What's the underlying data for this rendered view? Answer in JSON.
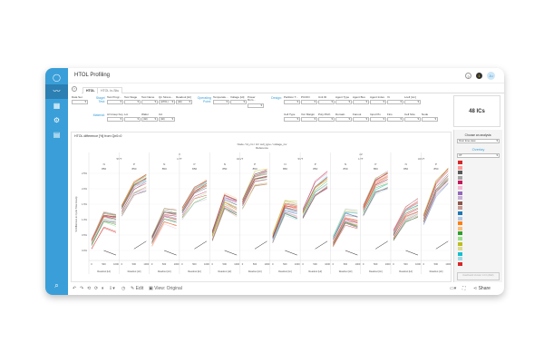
{
  "app": {
    "title": "HTOL Profiling",
    "user_initials": "Ju",
    "notification_count": "1"
  },
  "sidebar": {
    "items": [
      {
        "icon": "logo-icon"
      },
      {
        "icon": "trend-icon",
        "active": true
      },
      {
        "icon": "grid-icon"
      },
      {
        "icon": "gear-icon"
      },
      {
        "icon": "database-icon"
      },
      {
        "icon": "search-icon"
      }
    ]
  },
  "tabs": [
    {
      "label": "HTOL",
      "active": true
    },
    {
      "label": "HTOL In-Situ"
    }
  ],
  "filters": {
    "data_set": {
      "label": "Data Set",
      "value": ""
    },
    "stage_label": "Stage/ Test:",
    "stage": [
      {
        "label": "Test Progr...",
        "value": ""
      },
      {
        "label": "Test Stage",
        "value": ""
      },
      {
        "label": "Test Name",
        "value": ""
      },
      {
        "label": "Qn Stress...",
        "value": "(HTOL)"
      },
      {
        "label": "Readout [Hr]",
        "value": "(All)"
      }
    ],
    "operating_label": "Operating Point:",
    "operating": [
      {
        "label": "Temperatu...",
        "value": ""
      },
      {
        "label": "Voltage [Hi]",
        "value": ""
      },
      {
        "label": "Power Dom...",
        "value": ""
      }
    ],
    "material_label": "Material:",
    "material": [
      {
        "label": "Al Group Key",
        "value": ""
      },
      {
        "label": "Lot",
        "value": ""
      },
      {
        "label": "Wafer",
        "value": "(All)"
      },
      {
        "label": "Ud",
        "value": "(All)"
      }
    ],
    "design_label": "Design:",
    "design1": [
      {
        "label": "Partition T...",
        "value": ""
      },
      {
        "label": "PCOIO",
        "value": ""
      },
      {
        "label": "Unit ID",
        "value": ""
      },
      {
        "label": "Agent Type",
        "value": ""
      },
      {
        "label": "Agent Bus",
        "value": ""
      },
      {
        "label": "Agent Index",
        "value": ""
      },
      {
        "label": "Vt",
        "value": ""
      },
      {
        "label": "Lcell [nm]",
        "value": ""
      }
    ],
    "design2": [
      {
        "label": "Cell Type",
        "value": ""
      },
      {
        "label": "Vcc Margin",
        "value": ""
      },
      {
        "label": "Poly Pitch",
        "value": ""
      },
      {
        "label": "Domain",
        "value": ""
      },
      {
        "label": "Fanout",
        "value": ""
      },
      {
        "label": "Input Pin",
        "value": ""
      },
      {
        "label": "Fins",
        "value": ""
      },
      {
        "label": "Cell Size",
        "value": ""
      },
      {
        "label": "Node",
        "value": ""
      }
    ]
  },
  "kpi": {
    "value": "48 ICs"
  },
  "analysis": {
    "label": "Choose an analysis:",
    "value": "Over time view",
    "overlay_label": "Overlay",
    "overlay_value": "VT",
    "legend_colors": [
      "#d62728",
      "#ff9896",
      "#595959",
      "#a5a5a5",
      "#c2185b",
      "#f7b6d2",
      "#9467bd",
      "#c5b0d5",
      "#8c564b",
      "#c49c94",
      "#1f77b4",
      "#aec7e8",
      "#ff7f0e",
      "#ffbb78",
      "#2ca02c",
      "#98df8a",
      "#bcbd22",
      "#dbdb8d",
      "#17becf",
      "#9edae5",
      "#d62728"
    ],
    "version": "Dashboard Version 1.0.0 (2022)"
  },
  "toolbar": {
    "edit": "Edit",
    "view": "View: Original",
    "share": "Share"
  },
  "chart_data": {
    "type": "line",
    "title": "HTOL difference [%] from Qn0=0",
    "column_header": "Node / Id_cm / Id / cell_type / voltage_inv",
    "column_subheader": "Reference",
    "groups": [
      {
        "label": "8",
        "vts": [
          "SVT",
          "LVT",
          "ULVT"
        ]
      },
      {
        "label": "22",
        "vts": [
          "SVT",
          "LVT",
          "ULVT"
        ]
      }
    ],
    "polarities": [
      "N",
      "P"
    ],
    "voltage": "850",
    "x_ticks": [
      "0",
      "500",
      "1000"
    ],
    "xlabel": "Readout [Hr]",
    "ylabel": "% Difference in Cycle Time Hourly",
    "y_ticks": [
      "0.0%",
      "0.5%",
      "1.0%",
      "1.5%",
      "2.0%",
      "2.5%"
    ],
    "ylim": [
      -0.4,
      2.6
    ],
    "grid": true,
    "x": [
      0,
      500,
      1000
    ],
    "panel_medians": [
      [
        0.2,
        1.0,
        0.9
      ],
      [
        1.3,
        2.0,
        2.2
      ],
      [
        0.3,
        1.1,
        1.0
      ],
      [
        1.2,
        1.8,
        2.0
      ],
      [
        0.5,
        1.6,
        1.4
      ],
      [
        1.5,
        2.3,
        2.4
      ],
      [
        0.4,
        1.4,
        1.3
      ],
      [
        1.2,
        2.0,
        2.3
      ],
      [
        0.3,
        1.1,
        1.0
      ],
      [
        1.3,
        2.1,
        2.3
      ],
      [
        0.5,
        1.2,
        1.4
      ],
      [
        1.0,
        2.0,
        2.4
      ]
    ]
  }
}
